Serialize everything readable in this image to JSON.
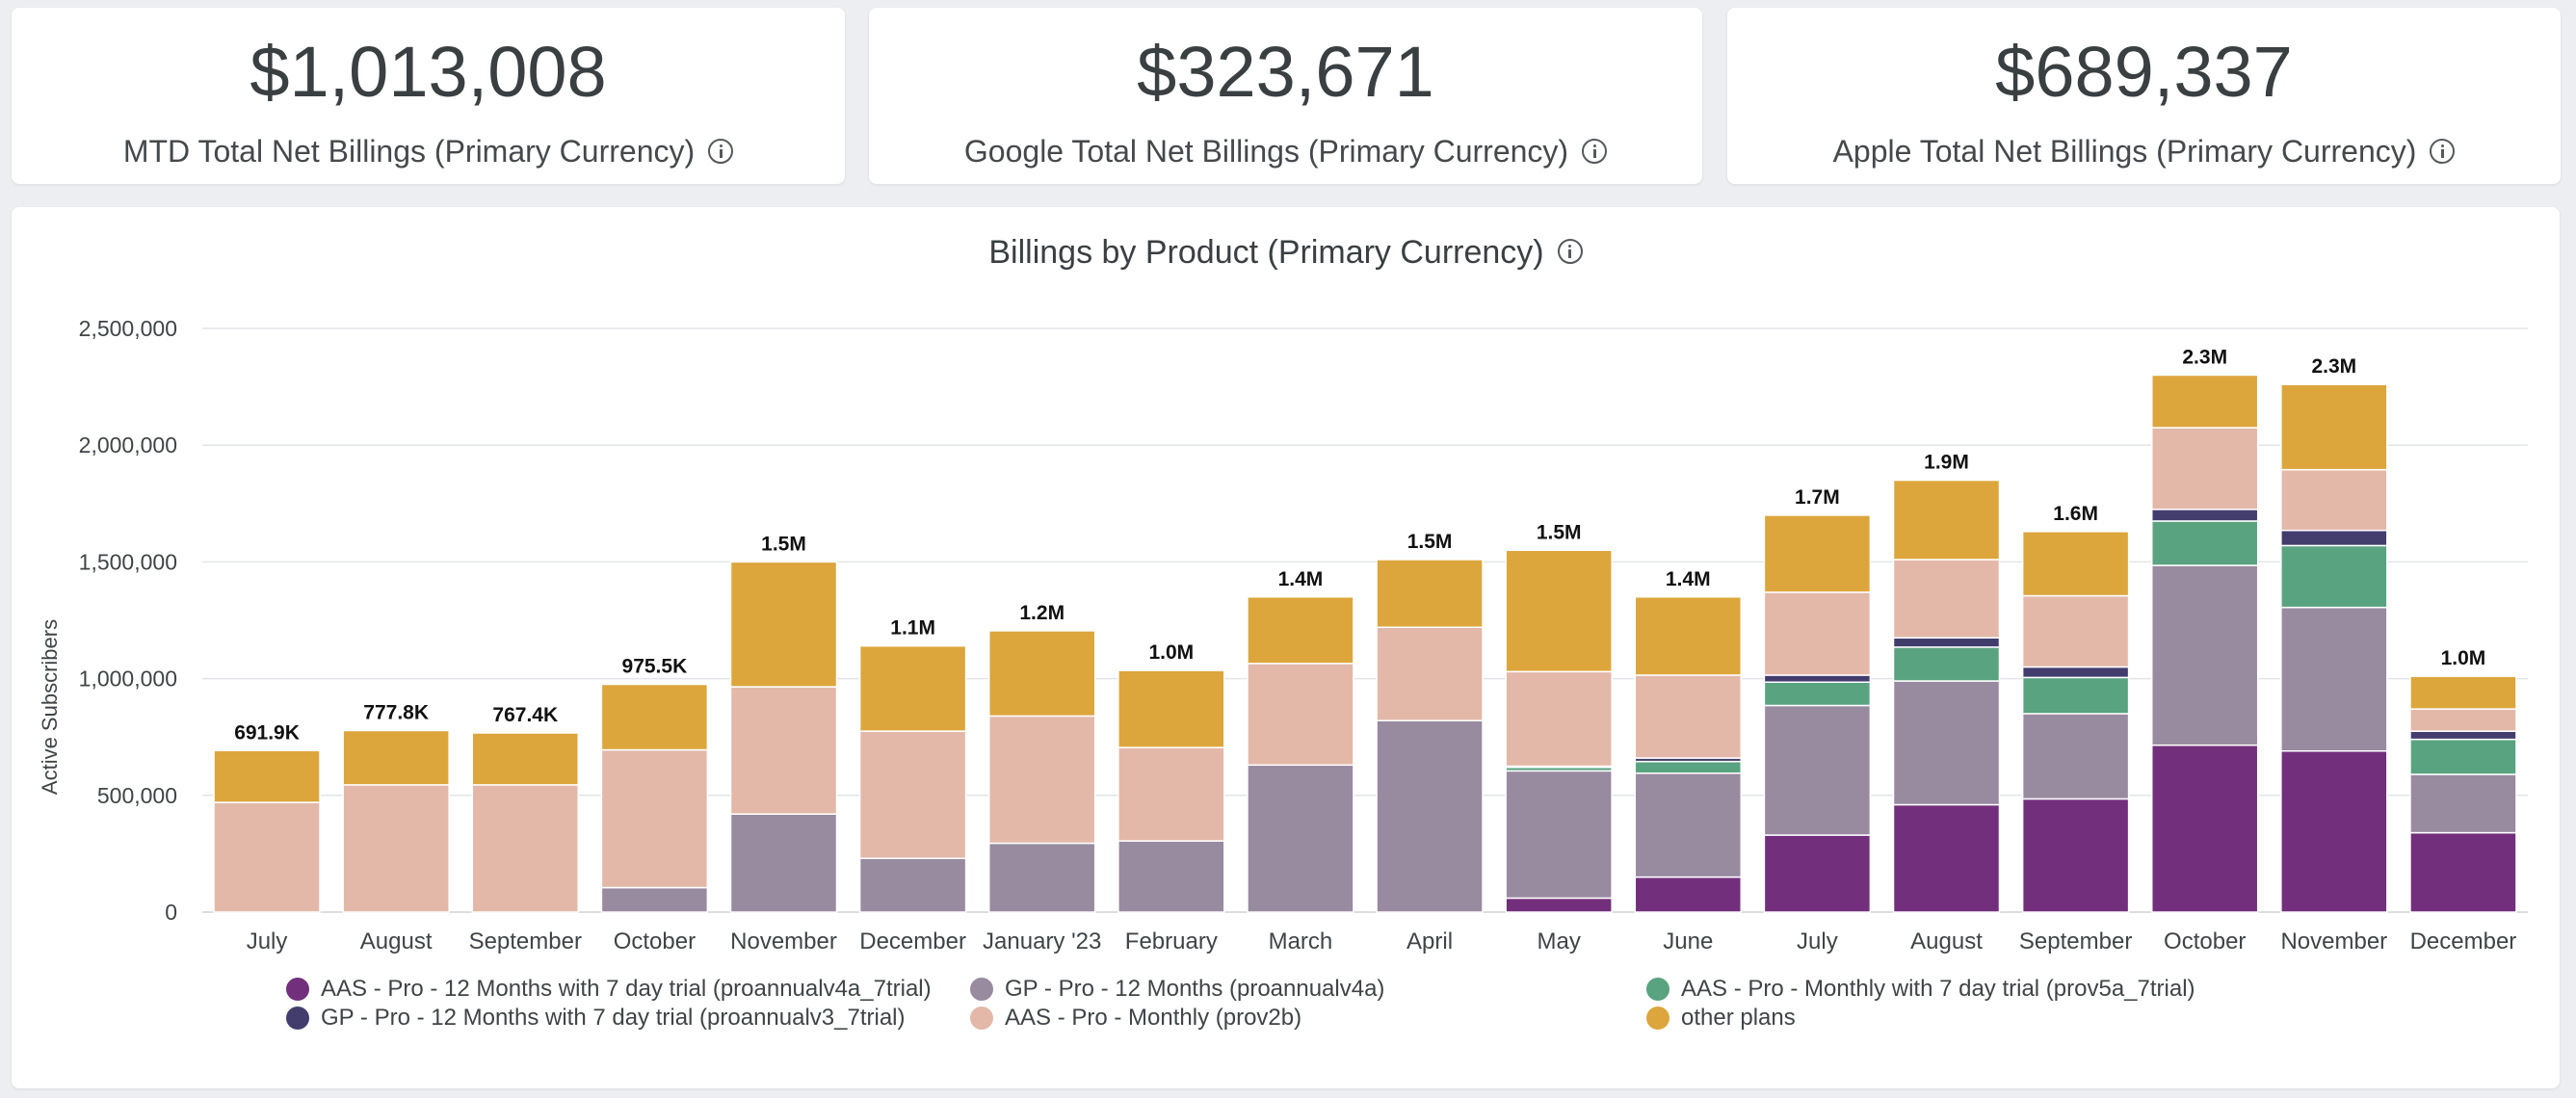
{
  "kpis": [
    {
      "value": "$1,013,008",
      "label": "MTD Total Net Billings (Primary Currency)"
    },
    {
      "value": "$323,671",
      "label": "Google Total Net Billings (Primary Currency)"
    },
    {
      "value": "$689,337",
      "label": "Apple Total Net Billings (Primary Currency)"
    }
  ],
  "chart_data": {
    "type": "bar",
    "stacked": true,
    "title": "Billings by Product (Primary Currency)",
    "ylabel": "Active Subscribers",
    "xlabel": "",
    "ylim": [
      0,
      2500000
    ],
    "yticks": [
      {
        "value": 0,
        "label": "0"
      },
      {
        "value": 500000,
        "label": "500,000"
      },
      {
        "value": 1000000,
        "label": "1,000,000"
      },
      {
        "value": 1500000,
        "label": "1,500,000"
      },
      {
        "value": 2000000,
        "label": "2,000,000"
      },
      {
        "value": 2500000,
        "label": "2,500,000"
      }
    ],
    "grid": true,
    "legend_position": "bottom",
    "categories": [
      "July",
      "August",
      "September",
      "October",
      "November",
      "December",
      "January '23",
      "February",
      "March",
      "April",
      "May",
      "June",
      "July",
      "August",
      "September",
      "October",
      "November",
      "December"
    ],
    "totals_labels": [
      "691.9K",
      "777.8K",
      "767.4K",
      "975.5K",
      "1.5M",
      "1.1M",
      "1.2M",
      "1.0M",
      "1.4M",
      "1.5M",
      "1.5M",
      "1.4M",
      "1.7M",
      "1.9M",
      "1.6M",
      "2.3M",
      "2.3M",
      "1.0M"
    ],
    "series": [
      {
        "name": "AAS - Pro - 12 Months with 7 day trial (proannualv4a_7trial)",
        "color": "#722f7b",
        "values": [
          0,
          0,
          0,
          0,
          0,
          0,
          0,
          0,
          0,
          0,
          60000,
          150000,
          330000,
          460000,
          485000,
          715000,
          690000,
          340000
        ]
      },
      {
        "name": "GP - Pro - 12 Months (proannualv4a)",
        "color": "#988a9f",
        "values": [
          0,
          0,
          0,
          105000,
          420000,
          230000,
          295000,
          305000,
          630000,
          820000,
          545000,
          445000,
          555000,
          530000,
          365000,
          770000,
          615000,
          250000
        ]
      },
      {
        "name": "AAS - Pro - Monthly with 7 day trial (prov5a_7trial)",
        "color": "#5aa380",
        "values": [
          0,
          0,
          0,
          0,
          0,
          0,
          0,
          0,
          0,
          0,
          15000,
          50000,
          100000,
          145000,
          155000,
          190000,
          265000,
          150000
        ]
      },
      {
        "name": "GP - Pro - 12 Months with 7 day trial (proannualv3_7trial)",
        "color": "#433d6e",
        "values": [
          0,
          0,
          0,
          0,
          0,
          0,
          0,
          0,
          0,
          0,
          5000,
          15000,
          30000,
          40000,
          45000,
          50000,
          65000,
          35000
        ]
      },
      {
        "name": "AAS - Pro - Monthly (prov2b)",
        "color": "#e3b8a9",
        "values": [
          470000,
          545000,
          545000,
          590000,
          545000,
          545000,
          545000,
          400000,
          435000,
          400000,
          405000,
          355000,
          355000,
          335000,
          305000,
          350000,
          260000,
          95000
        ]
      },
      {
        "name": "other plans",
        "color": "#dca63d",
        "values": [
          221900,
          232800,
          222400,
          280500,
          535000,
          365000,
          365000,
          330000,
          285000,
          290000,
          520000,
          335000,
          330000,
          340000,
          275000,
          225000,
          365000,
          140000
        ]
      }
    ]
  },
  "legend": {
    "rows": [
      [
        "AAS - Pro - 12 Months with 7 day trial (proannualv4a_7trial)",
        "GP - Pro - 12 Months (proannualv4a)",
        "AAS - Pro - Monthly with 7 day trial (prov5a_7trial)"
      ],
      [
        "GP - Pro - 12 Months with 7 day trial (proannualv3_7trial)",
        "AAS - Pro - Monthly (prov2b)",
        "other plans"
      ]
    ]
  }
}
